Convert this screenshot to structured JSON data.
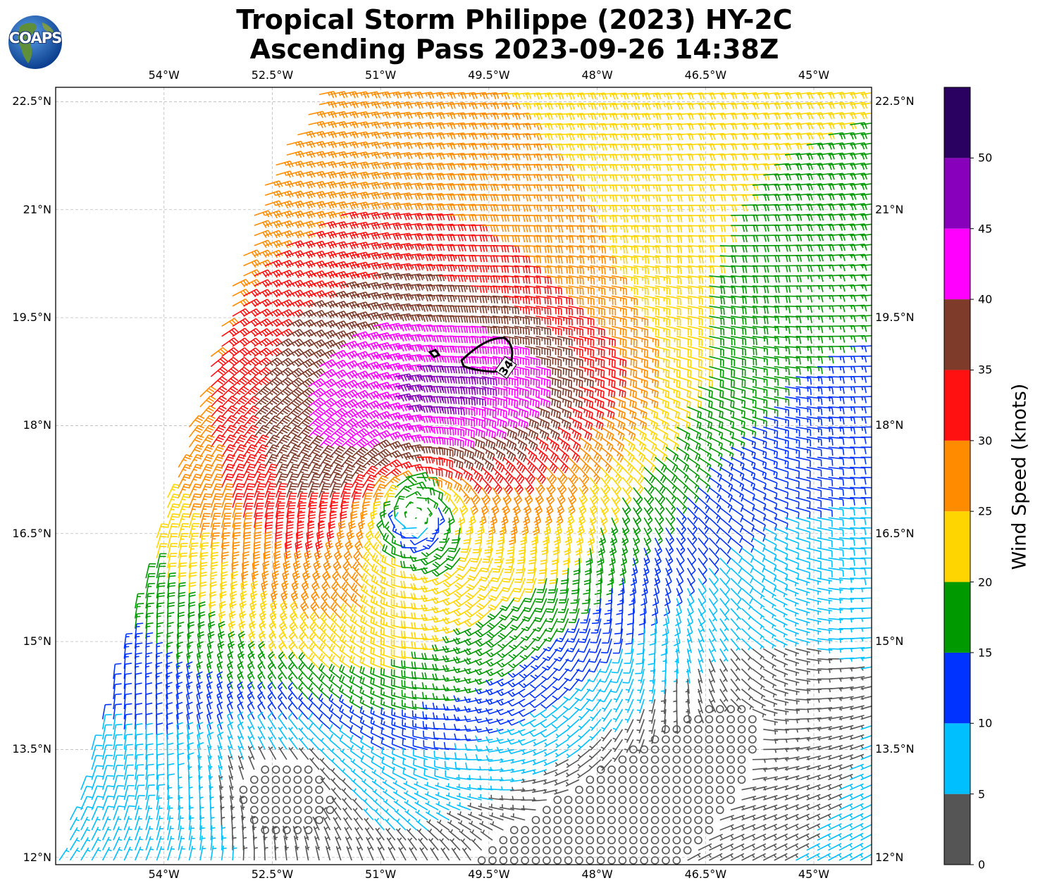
{
  "title": {
    "line1": "Tropical Storm Philippe (2023) HY-2C",
    "line2": "Ascending Pass 2023-09-26 14:38Z"
  },
  "logo": {
    "text": "COAPS",
    "icon": "globe-icon"
  },
  "map": {
    "lon_range": [
      -55.5,
      -44.2
    ],
    "lat_range": [
      11.9,
      22.7
    ],
    "lon_ticks": [
      {
        "value": -54.0,
        "label": "54°W"
      },
      {
        "value": -52.5,
        "label": "52.5°W"
      },
      {
        "value": -51.0,
        "label": "51°W"
      },
      {
        "value": -49.5,
        "label": "49.5°W"
      },
      {
        "value": -48.0,
        "label": "48°W"
      },
      {
        "value": -46.5,
        "label": "46.5°W"
      },
      {
        "value": -45.0,
        "label": "45°W"
      }
    ],
    "lat_ticks": [
      {
        "value": 12.0,
        "label": "12°N"
      },
      {
        "value": 13.5,
        "label": "13.5°N"
      },
      {
        "value": 15.0,
        "label": "15°N"
      },
      {
        "value": 16.5,
        "label": "16.5°N"
      },
      {
        "value": 18.0,
        "label": "18°N"
      },
      {
        "value": 19.5,
        "label": "19.5°N"
      },
      {
        "value": 21.0,
        "label": "21°N"
      },
      {
        "value": 22.5,
        "label": "22.5°N"
      }
    ],
    "grid": true,
    "storm_center": {
      "lon": -50.6,
      "lat": 16.95
    },
    "contour_label": "34",
    "contour_value": 34
  },
  "colorbar": {
    "label": "Wind Speed (knots)",
    "min": 0,
    "max": 55,
    "bins": [
      {
        "from": 0,
        "to": 5,
        "color": "#555555"
      },
      {
        "from": 5,
        "to": 10,
        "color": "#00bfff"
      },
      {
        "from": 10,
        "to": 15,
        "color": "#0033ff"
      },
      {
        "from": 15,
        "to": 20,
        "color": "#009900"
      },
      {
        "from": 20,
        "to": 25,
        "color": "#ffd500"
      },
      {
        "from": 25,
        "to": 30,
        "color": "#ff8c00"
      },
      {
        "from": 30,
        "to": 35,
        "color": "#ff1111"
      },
      {
        "from": 35,
        "to": 40,
        "color": "#7f3b2a"
      },
      {
        "from": 40,
        "to": 45,
        "color": "#ff00ff"
      },
      {
        "from": 45,
        "to": 50,
        "color": "#8800bb"
      },
      {
        "from": 50,
        "to": 55,
        "color": "#2a0060"
      }
    ],
    "ticks": [
      {
        "value": 0,
        "label": "0"
      },
      {
        "value": 5,
        "label": "5"
      },
      {
        "value": 10,
        "label": "10"
      },
      {
        "value": 15,
        "label": "15"
      },
      {
        "value": 20,
        "label": "20"
      },
      {
        "value": 25,
        "label": "25"
      },
      {
        "value": 30,
        "label": "30"
      },
      {
        "value": 35,
        "label": "35"
      },
      {
        "value": 40,
        "label": "40"
      },
      {
        "value": 45,
        "label": "45"
      },
      {
        "value": 50,
        "label": "50"
      }
    ]
  }
}
